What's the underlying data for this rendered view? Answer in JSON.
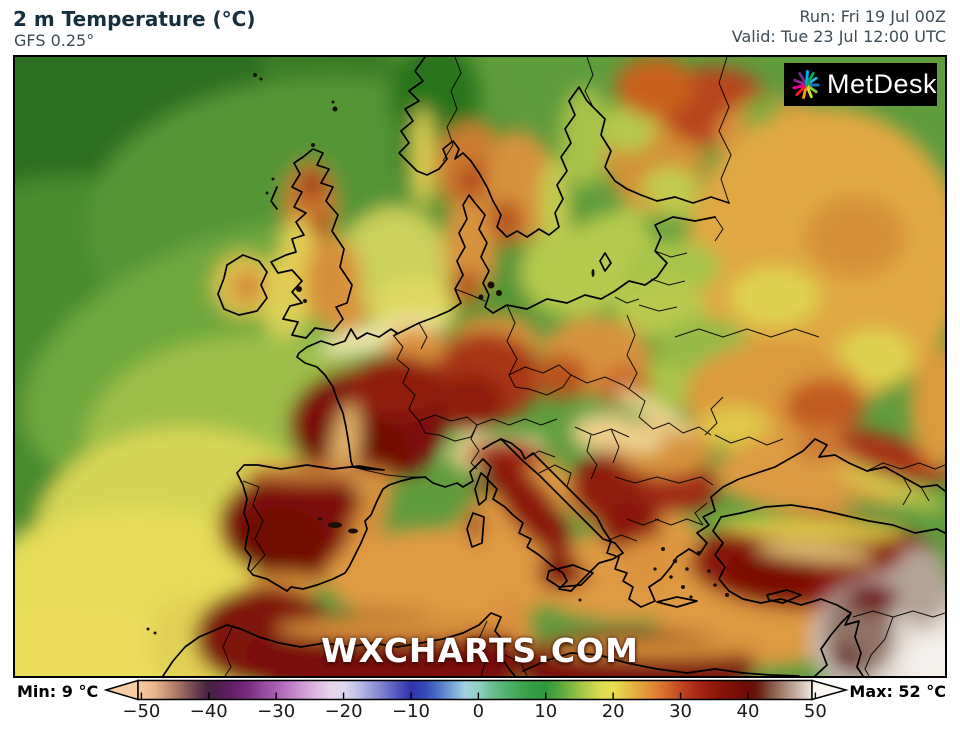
{
  "header": {
    "title": "2 m Temperature (°C)",
    "model": "GFS 0.25°",
    "run": "Run: Fri 19 Jul 00Z",
    "valid": "Valid: Tue 23 Jul 12:00 UTC"
  },
  "map": {
    "watermark": "WXCHARTS.COM",
    "logo_text": "MetDesk"
  },
  "colorbar": {
    "min_label": "Min: 9 °C",
    "max_label": "Max: 52 °C",
    "range": [
      -50.5,
      49.5
    ],
    "ticks": [
      {
        "label": "−50",
        "value": -50
      },
      {
        "label": "−40",
        "value": -40
      },
      {
        "label": "−30",
        "value": -30
      },
      {
        "label": "−20",
        "value": -20
      },
      {
        "label": "−10",
        "value": -10
      },
      {
        "label": "0",
        "value": 0
      },
      {
        "label": "10",
        "value": 10
      },
      {
        "label": "20",
        "value": 20
      },
      {
        "label": "30",
        "value": 30
      },
      {
        "label": "40",
        "value": 40
      },
      {
        "label": "50",
        "value": 50
      }
    ],
    "stops": [
      [
        -50.5,
        "#f6cda5"
      ],
      [
        -48,
        "#e7b48d"
      ],
      [
        -46,
        "#c38f74"
      ],
      [
        -44,
        "#9b6a60"
      ],
      [
        -42,
        "#6d4050"
      ],
      [
        -40,
        "#462042"
      ],
      [
        -38,
        "#551d56"
      ],
      [
        -36,
        "#67226b"
      ],
      [
        -34,
        "#7c2c82"
      ],
      [
        -32,
        "#934a9c"
      ],
      [
        -30,
        "#a95eb0"
      ],
      [
        -28,
        "#bd7cc4"
      ],
      [
        -26,
        "#cf9bd4"
      ],
      [
        -24,
        "#dfb8e2"
      ],
      [
        -22,
        "#e9d3ea"
      ],
      [
        -20,
        "#dfd9ef"
      ],
      [
        -18,
        "#c0c2e8"
      ],
      [
        -16,
        "#9a9edb"
      ],
      [
        -14,
        "#767bcc"
      ],
      [
        -12,
        "#5156bc"
      ],
      [
        -10,
        "#3134ab"
      ],
      [
        -8,
        "#3349b8"
      ],
      [
        -6,
        "#4e71c6"
      ],
      [
        -4,
        "#76a2d4"
      ],
      [
        -2,
        "#a3cfe0"
      ],
      [
        0,
        "#8fd0c3"
      ],
      [
        2,
        "#6cbf92"
      ],
      [
        4,
        "#53b371"
      ],
      [
        6,
        "#41a856"
      ],
      [
        8,
        "#339e45"
      ],
      [
        10,
        "#2f9a3c"
      ],
      [
        12,
        "#55a83c"
      ],
      [
        14,
        "#83ba42"
      ],
      [
        16,
        "#b1cc49"
      ],
      [
        18,
        "#d8da4e"
      ],
      [
        20,
        "#e8df4f"
      ],
      [
        22,
        "#e6c246"
      ],
      [
        24,
        "#e3a43d"
      ],
      [
        26,
        "#df8634"
      ],
      [
        28,
        "#d3662c"
      ],
      [
        30,
        "#c24723"
      ],
      [
        32,
        "#ae2d19"
      ],
      [
        34,
        "#9a1d0f"
      ],
      [
        36,
        "#891409"
      ],
      [
        38,
        "#7a0f06"
      ],
      [
        40,
        "#6d0b04"
      ],
      [
        41,
        "#681208"
      ],
      [
        42,
        "#6f2a1c"
      ],
      [
        43,
        "#7f4a3a"
      ],
      [
        44,
        "#8f6454"
      ],
      [
        45,
        "#a07c6c"
      ],
      [
        46,
        "#b29484"
      ],
      [
        47,
        "#c3ab9c"
      ],
      [
        48,
        "#d4c2b6"
      ],
      [
        49,
        "#e5d8cf"
      ],
      [
        49.5,
        "#ece2da"
      ]
    ]
  },
  "colors": {
    "title_text": "#16303e",
    "meta_text": "#3c4c55",
    "map_border": "#000000",
    "logo_bg": "#000000",
    "logo_text": "#ffffff",
    "watermark_text": "#ffffff"
  }
}
